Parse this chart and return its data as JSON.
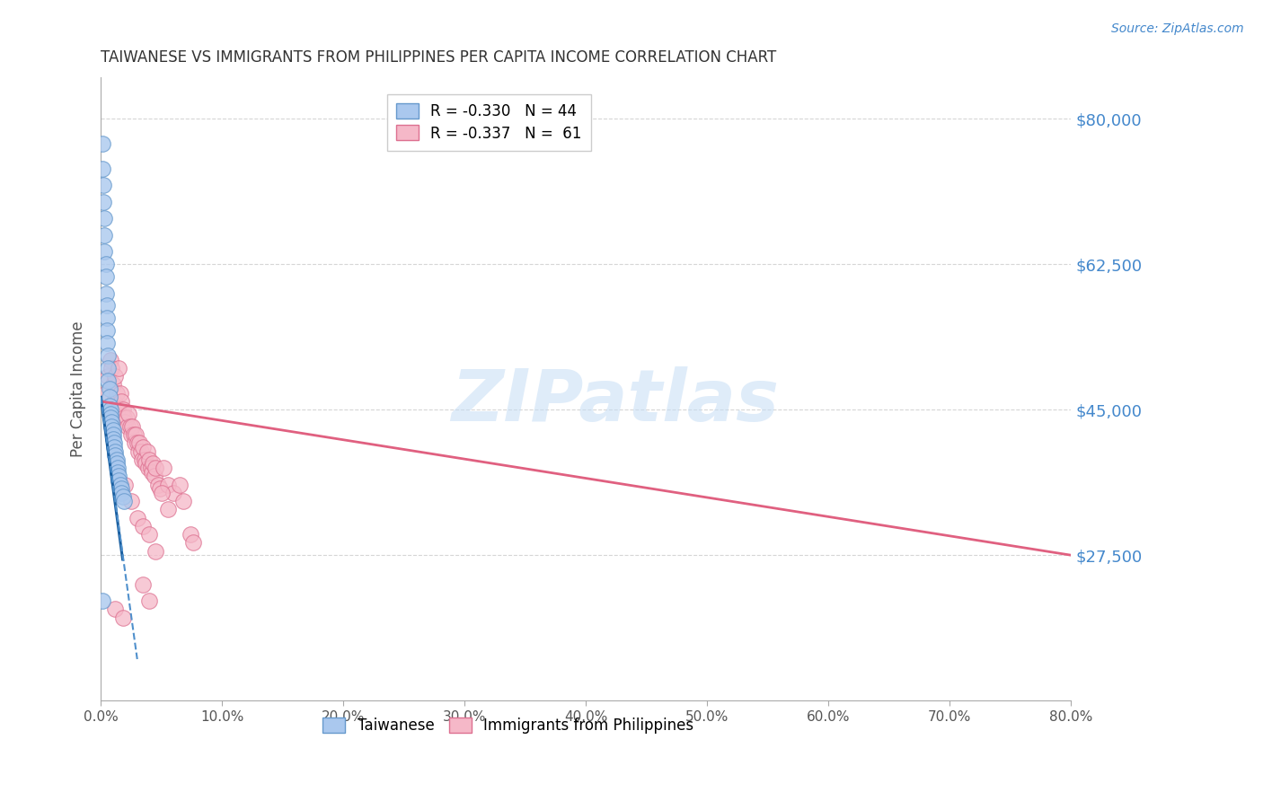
{
  "title": "TAIWANESE VS IMMIGRANTS FROM PHILIPPINES PER CAPITA INCOME CORRELATION CHART",
  "source": "Source: ZipAtlas.com",
  "ylabel": "Per Capita Income",
  "xlabel_ticks": [
    "0.0%",
    "10.0%",
    "20.0%",
    "30.0%",
    "40.0%",
    "50.0%",
    "60.0%",
    "70.0%",
    "80.0%"
  ],
  "ytick_labels": [
    "$27,500",
    "$45,000",
    "$62,500",
    "$80,000"
  ],
  "ytick_values": [
    27500,
    45000,
    62500,
    80000
  ],
  "xlim": [
    0.0,
    0.8
  ],
  "ylim": [
    10000,
    85000
  ],
  "taiwanese_scatter": {
    "color": "#aac8ee",
    "edge_color": "#6699cc",
    "x": [
      0.001,
      0.001,
      0.002,
      0.002,
      0.003,
      0.003,
      0.003,
      0.004,
      0.004,
      0.004,
      0.005,
      0.005,
      0.005,
      0.005,
      0.006,
      0.006,
      0.006,
      0.007,
      0.007,
      0.007,
      0.008,
      0.008,
      0.008,
      0.009,
      0.009,
      0.01,
      0.01,
      0.01,
      0.011,
      0.011,
      0.012,
      0.012,
      0.013,
      0.013,
      0.014,
      0.014,
      0.015,
      0.015,
      0.016,
      0.017,
      0.017,
      0.018,
      0.019,
      0.001
    ],
    "y": [
      77000,
      74000,
      72000,
      70000,
      68000,
      66000,
      64000,
      62500,
      61000,
      59000,
      57500,
      56000,
      54500,
      53000,
      51500,
      50000,
      48500,
      47500,
      46500,
      45500,
      45000,
      44500,
      44000,
      43500,
      43000,
      42500,
      42000,
      41500,
      41000,
      40500,
      40000,
      39500,
      39000,
      38500,
      38000,
      37500,
      37000,
      36500,
      36000,
      35500,
      35000,
      34500,
      34000,
      22000
    ]
  },
  "philippines_scatter": {
    "color": "#f5b8c8",
    "edge_color": "#dd7090",
    "x": [
      0.004,
      0.006,
      0.008,
      0.009,
      0.01,
      0.011,
      0.012,
      0.013,
      0.014,
      0.015,
      0.016,
      0.017,
      0.018,
      0.019,
      0.02,
      0.021,
      0.022,
      0.023,
      0.024,
      0.025,
      0.026,
      0.027,
      0.028,
      0.029,
      0.03,
      0.031,
      0.032,
      0.033,
      0.034,
      0.035,
      0.036,
      0.037,
      0.038,
      0.039,
      0.04,
      0.041,
      0.042,
      0.043,
      0.044,
      0.045,
      0.047,
      0.049,
      0.052,
      0.055,
      0.06,
      0.065,
      0.068,
      0.074,
      0.076,
      0.02,
      0.025,
      0.03,
      0.035,
      0.04,
      0.045,
      0.05,
      0.055,
      0.012,
      0.018,
      0.035,
      0.04
    ],
    "y": [
      47000,
      49000,
      51000,
      50000,
      48000,
      46000,
      49000,
      47000,
      45000,
      50000,
      47000,
      46000,
      45000,
      44000,
      43500,
      44000,
      43000,
      44500,
      43000,
      42000,
      43000,
      42000,
      41000,
      42000,
      41000,
      40000,
      41000,
      40000,
      39000,
      40500,
      39000,
      38500,
      40000,
      38000,
      39000,
      38000,
      37500,
      38500,
      37000,
      38000,
      36000,
      35500,
      38000,
      36000,
      35000,
      36000,
      34000,
      30000,
      29000,
      36000,
      34000,
      32000,
      31000,
      30000,
      28000,
      35000,
      33000,
      21000,
      20000,
      24000,
      22000
    ]
  },
  "taiwanese_trend_solid": {
    "x": [
      0.0,
      0.018
    ],
    "y": [
      46500,
      27000
    ],
    "color": "#1a5fa0"
  },
  "taiwanese_trend_dash": {
    "x": [
      0.0,
      0.03
    ],
    "y": [
      46500,
      15000
    ],
    "color": "#5090cc"
  },
  "philippines_trend": {
    "x": [
      0.0,
      0.8
    ],
    "y": [
      46000,
      27500
    ],
    "color": "#e06080"
  },
  "watermark_text": "ZIPatlas",
  "watermark_color": "#c5ddf5",
  "background_color": "#ffffff",
  "grid_color": "#cccccc",
  "title_color": "#333333",
  "axis_label_color": "#555555",
  "ytick_color": "#4488cc",
  "xtick_color": "#555555",
  "legend_top_labels": [
    "R = -0.330   N = 44",
    "R = -0.337   N =  61"
  ],
  "legend_top_face": [
    "#aac8ee",
    "#f5b8c8"
  ],
  "legend_top_edge": [
    "#6699cc",
    "#dd7090"
  ],
  "legend_bottom_labels": [
    "Taiwanese",
    "Immigrants from Philippines"
  ],
  "legend_bottom_face": [
    "#aac8ee",
    "#f5b8c8"
  ],
  "legend_bottom_edge": [
    "#6699cc",
    "#dd7090"
  ]
}
